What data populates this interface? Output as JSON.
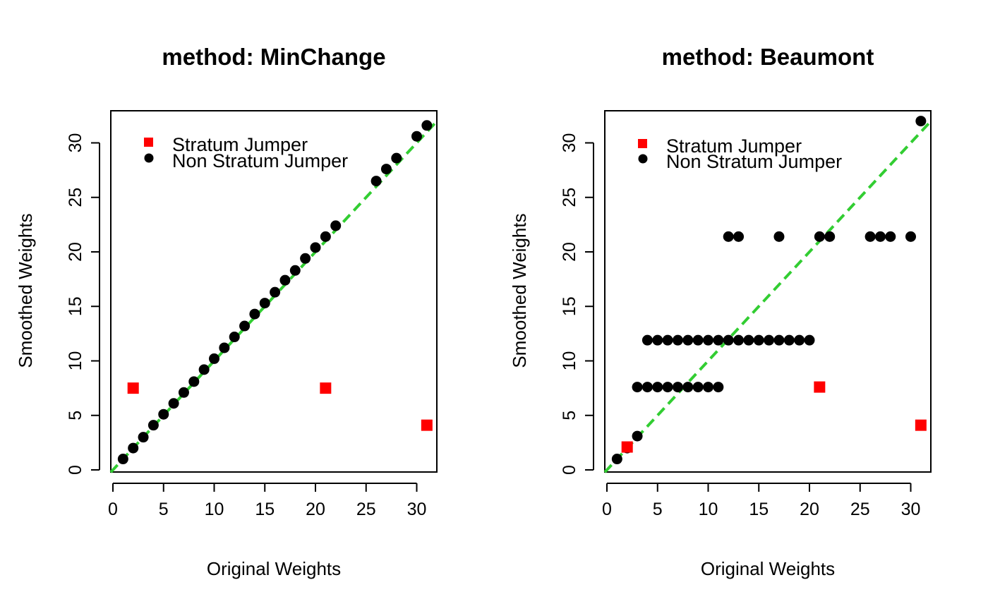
{
  "chart_data": [
    {
      "type": "scatter",
      "title": "method: MinChange",
      "xlabel": "Original Weights",
      "ylabel": "Smoothed Weights",
      "xlim": [
        0,
        32
      ],
      "ylim": [
        0,
        32.5
      ],
      "xticks": [
        "0",
        "5",
        "10",
        "15",
        "20",
        "25",
        "30"
      ],
      "yticks": [
        "0",
        "5",
        "10",
        "15",
        "20",
        "25",
        "30"
      ],
      "grid": false,
      "legend": {
        "position": "top-left",
        "entries": [
          "Stratum Jumper",
          "Non Stratum Jumper"
        ]
      },
      "reference_line": {
        "slope": 1,
        "intercept": 0,
        "style": "dashed",
        "color": "#32CD32"
      },
      "series": [
        {
          "name": "Non Stratum Jumper",
          "color": "#000000",
          "marker": "circle",
          "points": [
            [
              1,
              1
            ],
            [
              2,
              2
            ],
            [
              3,
              3
            ],
            [
              4,
              4.1
            ],
            [
              5,
              5.1
            ],
            [
              6,
              6.1
            ],
            [
              7,
              7.1
            ],
            [
              8,
              8.1
            ],
            [
              9,
              9.2
            ],
            [
              10,
              10.2
            ],
            [
              11,
              11.2
            ],
            [
              12,
              12.2
            ],
            [
              13,
              13.2
            ],
            [
              14,
              14.3
            ],
            [
              15,
              15.3
            ],
            [
              16,
              16.3
            ],
            [
              17,
              17.4
            ],
            [
              18,
              18.3
            ],
            [
              19,
              19.4
            ],
            [
              20,
              20.4
            ],
            [
              21,
              21.4
            ],
            [
              22,
              22.4
            ],
            [
              26,
              26.5
            ],
            [
              27,
              27.6
            ],
            [
              28,
              28.6
            ],
            [
              30,
              30.6
            ],
            [
              31,
              31.6
            ]
          ]
        },
        {
          "name": "Stratum Jumper",
          "color": "#FF0000",
          "marker": "square",
          "points": [
            [
              2,
              7.5
            ],
            [
              21,
              7.5
            ],
            [
              31,
              4.1
            ]
          ]
        }
      ]
    },
    {
      "type": "scatter",
      "title": "method: Beaumont",
      "xlabel": "Original Weights",
      "ylabel": "Smoothed Weights",
      "xlim": [
        0,
        32
      ],
      "ylim": [
        0,
        32.5
      ],
      "xticks": [
        "0",
        "5",
        "10",
        "15",
        "20",
        "25",
        "30"
      ],
      "yticks": [
        "0",
        "5",
        "10",
        "15",
        "20",
        "25",
        "30"
      ],
      "grid": false,
      "legend": {
        "position": "top-left",
        "entries": [
          "Stratum Jumper",
          "Non Stratum Jumper"
        ]
      },
      "reference_line": {
        "slope": 1,
        "intercept": 0,
        "style": "dashed",
        "color": "#32CD32"
      },
      "series": [
        {
          "name": "Non Stratum Jumper",
          "color": "#000000",
          "marker": "circle",
          "points": [
            [
              1,
              1
            ],
            [
              2,
              2
            ],
            [
              3,
              3.1
            ],
            [
              3,
              7.6
            ],
            [
              4,
              7.6
            ],
            [
              5,
              7.6
            ],
            [
              6,
              7.6
            ],
            [
              7,
              7.6
            ],
            [
              8,
              7.6
            ],
            [
              9,
              7.6
            ],
            [
              10,
              7.6
            ],
            [
              11,
              7.6
            ],
            [
              4,
              11.9
            ],
            [
              5,
              11.9
            ],
            [
              6,
              11.9
            ],
            [
              7,
              11.9
            ],
            [
              8,
              11.9
            ],
            [
              9,
              11.9
            ],
            [
              10,
              11.9
            ],
            [
              11,
              11.9
            ],
            [
              12,
              11.9
            ],
            [
              13,
              11.9
            ],
            [
              14,
              11.9
            ],
            [
              15,
              11.9
            ],
            [
              16,
              11.9
            ],
            [
              17,
              11.9
            ],
            [
              18,
              11.9
            ],
            [
              19,
              11.9
            ],
            [
              20,
              11.9
            ],
            [
              12,
              21.4
            ],
            [
              13,
              21.4
            ],
            [
              17,
              21.4
            ],
            [
              21,
              21.4
            ],
            [
              22,
              21.4
            ],
            [
              26,
              21.4
            ],
            [
              27,
              21.4
            ],
            [
              28,
              21.4
            ],
            [
              30,
              21.4
            ],
            [
              31,
              32
            ]
          ]
        },
        {
          "name": "Stratum Jumper",
          "color": "#FF0000",
          "marker": "square",
          "points": [
            [
              2,
              2.1
            ],
            [
              21,
              7.6
            ],
            [
              31,
              4.1
            ]
          ]
        }
      ]
    }
  ]
}
